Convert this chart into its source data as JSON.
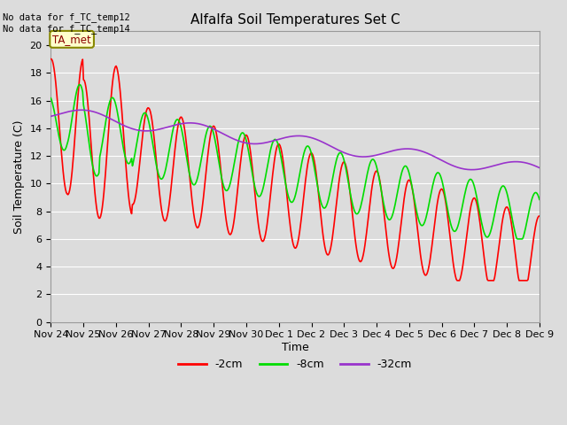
{
  "title": "Alfalfa Soil Temperatures Set C",
  "ylabel": "Soil Temperature (C)",
  "xlabel": "Time",
  "top_left_text": "No data for f_TC_temp12\nNo data for f_TC_temp14",
  "ta_met_label": "TA_met",
  "ylim": [
    0,
    21
  ],
  "yticks": [
    0,
    2,
    4,
    6,
    8,
    10,
    12,
    14,
    16,
    18,
    20
  ],
  "background_color": "#dcdcdc",
  "plot_bg_color": "#dcdcdc",
  "grid_color": "#ffffff",
  "colors": {
    "2cm": "#ff0000",
    "8cm": "#00dd00",
    "32cm": "#9933cc"
  },
  "x_tick_labels": [
    "Nov 24",
    "Nov 25",
    "Nov 26",
    "Nov 27",
    "Nov 28",
    "Nov 29",
    "Nov 30",
    "Dec 1",
    "Dec 2",
    "Dec 3",
    "Dec 4",
    "Dec 5",
    "Dec 6",
    "Dec 7",
    "Dec 8",
    "Dec 9"
  ],
  "legend_labels": [
    "-2cm",
    "-8cm",
    "-32cm"
  ]
}
